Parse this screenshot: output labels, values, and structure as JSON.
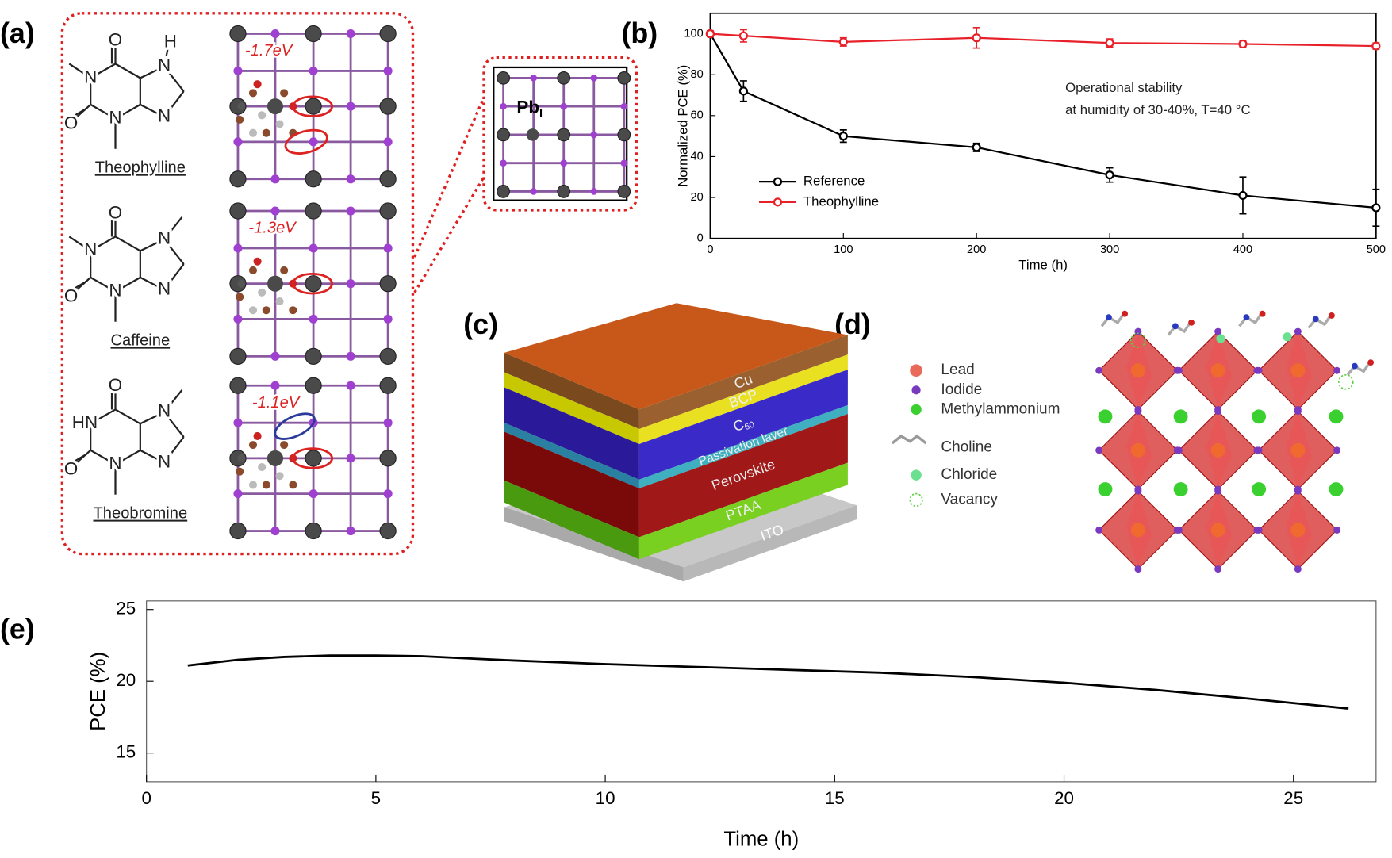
{
  "figure": {
    "panel_labels": [
      "(a)",
      "(b)",
      "(c)",
      "(d)",
      "(e)"
    ],
    "panel_a": {
      "molecules": [
        {
          "name": "Theophylline",
          "atoms": [
            "O",
            "N",
            "O",
            "N",
            "N",
            "N",
            "H"
          ]
        },
        {
          "name": "Caffeine",
          "atoms": [
            "O",
            "N",
            "O",
            "N",
            "N",
            "N"
          ]
        },
        {
          "name": "Theobromine",
          "atoms": [
            "O",
            "HN",
            "O",
            "N",
            "N",
            "N"
          ]
        }
      ],
      "energies": [
        "-1.7eV",
        "-1.3eV",
        "-1.1eV"
      ],
      "defect": {
        "text": "Pb",
        "subscript": "I"
      }
    },
    "panel_c": {
      "layers": [
        {
          "text": "Cu"
        },
        {
          "text": "BCP"
        },
        {
          "text": "C",
          "subscript": "60"
        },
        {
          "text": "Passivation layer"
        },
        {
          "text": "Perovskite"
        },
        {
          "text": "PTAA"
        },
        {
          "text": "ITO"
        }
      ]
    },
    "panel_d": {
      "legend": [
        "Lead",
        "Iodide",
        "Methylammonium",
        "Choline",
        "Chloride",
        "Vacancy"
      ]
    }
  },
  "chart_data": [
    {
      "type": "line",
      "x": [
        0,
        25,
        100,
        200,
        300,
        400,
        500
      ],
      "xlim": [
        0,
        500
      ],
      "ylim": [
        0,
        110
      ],
      "xticks": [
        0,
        100,
        200,
        300,
        400,
        500
      ],
      "yticks": [
        0,
        20,
        40,
        60,
        80,
        100
      ],
      "xlabel": "Time (h)",
      "ylabel": "Normalized PCE (%)",
      "annotations": [
        "Operational stability",
        "at humidity of 30-40%, T=40 °C"
      ],
      "legend": "lower left",
      "markers": true,
      "series": [
        {
          "name": "Reference",
          "color": "#000000",
          "values": [
            100,
            72,
            50,
            44.5,
            31,
            21,
            15
          ],
          "errors": [
            0,
            5,
            3,
            2,
            3.5,
            9,
            9
          ]
        },
        {
          "name": "Theophylline",
          "color": "#e8202a",
          "values": [
            100,
            99,
            96,
            98,
            95.5,
            95,
            94
          ],
          "errors": [
            1.5,
            3,
            2,
            5,
            2,
            1.5,
            1.5
          ]
        }
      ]
    },
    {
      "type": "line",
      "x": [
        0.9,
        2,
        3,
        4,
        5,
        6,
        7,
        8,
        10,
        12,
        14,
        16,
        18,
        20,
        22,
        24,
        26.2
      ],
      "xlim": [
        0,
        26.8
      ],
      "ylim": [
        13,
        25.6
      ],
      "xticks": [
        0,
        5,
        10,
        15,
        20,
        25
      ],
      "yticks": [
        15,
        20,
        25
      ],
      "xlabel": "Time (h)",
      "ylabel": "PCE (%)",
      "series": [
        {
          "color": "#000000",
          "values": [
            21.1,
            21.5,
            21.7,
            21.8,
            21.8,
            21.75,
            21.6,
            21.45,
            21.2,
            21.0,
            20.8,
            20.6,
            20.3,
            19.9,
            19.4,
            18.8,
            18.1
          ]
        }
      ]
    }
  ]
}
